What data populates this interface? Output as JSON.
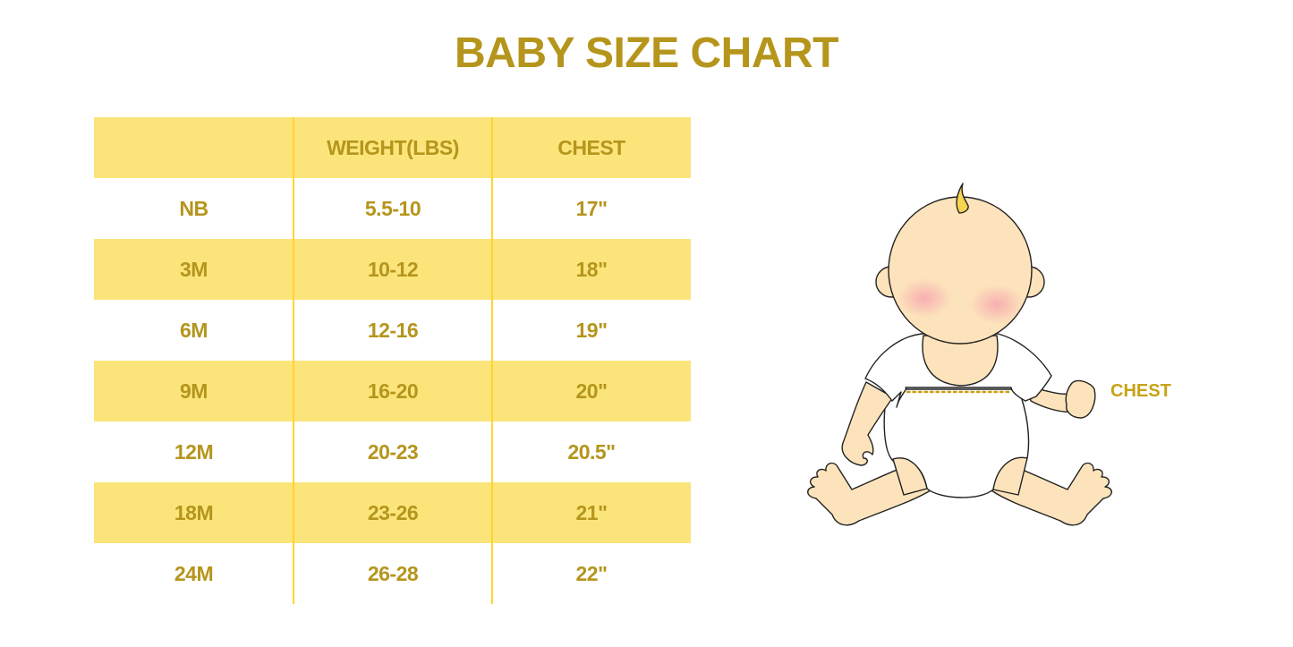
{
  "title": "BABY SIZE CHART",
  "table": {
    "headers": [
      "",
      "WEIGHT(LBS)",
      "CHEST"
    ],
    "rows": [
      [
        "NB",
        "5.5-10",
        "17\""
      ],
      [
        "3M",
        "10-12",
        "18\""
      ],
      [
        "6M",
        "12-16",
        "19\""
      ],
      [
        "9M",
        "16-20",
        "20\""
      ],
      [
        "12M",
        "20-23",
        "20.5\""
      ],
      [
        "18M",
        "23-26",
        "21\""
      ],
      [
        "24M",
        "26-28",
        "22\""
      ]
    ]
  },
  "illustration": {
    "chest_label": "CHEST"
  },
  "colors": {
    "text": "#B5951C",
    "stripe": "#FBE57B",
    "divider": "#FFD42E",
    "skin": "#FCE3BB",
    "chest_line": "#C8A215"
  }
}
